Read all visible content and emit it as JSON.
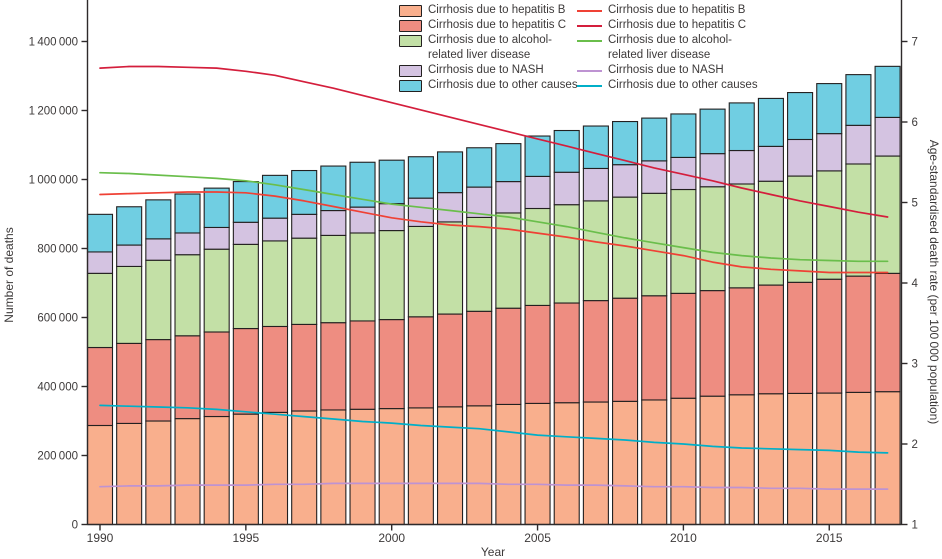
{
  "axes": {
    "left": {
      "title": "Number of deaths",
      "tick_values": [
        0,
        200000,
        400000,
        600000,
        800000,
        1000000,
        1200000,
        1400000
      ],
      "tick_labels": [
        "0",
        "200 000",
        "400 000",
        "600 000",
        "800 000",
        "1 000 000",
        "1 200 000",
        "1 400 000"
      ],
      "range": [
        0,
        1400000
      ]
    },
    "right": {
      "title": "Age-standardised death rate (per 100 000 population)",
      "tick_values": [
        1,
        2,
        3,
        4,
        5,
        6,
        7
      ],
      "tick_labels": [
        "1",
        "2",
        "3",
        "4",
        "5",
        "6",
        "7"
      ],
      "range": [
        1,
        7
      ]
    },
    "x": {
      "title": "Year",
      "tick_values": [
        1990,
        1995,
        2000,
        2005,
        2010,
        2015
      ],
      "tick_labels": [
        "1990",
        "1995",
        "2000",
        "2005",
        "2010",
        "2015"
      ],
      "range": [
        1990,
        2017
      ]
    }
  },
  "chart_data": [
    {
      "type": "bar",
      "stacked": true,
      "legend_position": "top-center-left-column",
      "x": [
        1990,
        1991,
        1992,
        1993,
        1994,
        1995,
        1996,
        1997,
        1998,
        1999,
        2000,
        2001,
        2002,
        2003,
        2004,
        2005,
        2006,
        2007,
        2008,
        2009,
        2010,
        2011,
        2012,
        2013,
        2014,
        2015,
        2016,
        2017
      ],
      "ylabel": "Number of deaths",
      "ylim": [
        0,
        1400000
      ],
      "ytick_step": 200000,
      "series": [
        {
          "name": "Cirrhosis due to hepatitis B",
          "color": "#F9AF8D",
          "values": [
            287000,
            293000,
            300000,
            307000,
            313000,
            320000,
            325000,
            329000,
            332000,
            334000,
            336000,
            338000,
            341000,
            344000,
            348000,
            351000,
            353000,
            355000,
            357000,
            361000,
            366000,
            372000,
            376000,
            379000,
            380000,
            381000,
            383000,
            385000
          ]
        },
        {
          "name": "Cirrhosis due to hepatitis C",
          "color": "#EE8D81",
          "values": [
            226000,
            232000,
            236000,
            240000,
            245000,
            248000,
            249000,
            251000,
            253000,
            256000,
            258000,
            264000,
            269000,
            274000,
            279000,
            284000,
            289000,
            294000,
            299000,
            302000,
            304000,
            306000,
            310000,
            315000,
            322000,
            330000,
            337000,
            343000
          ]
        },
        {
          "name": "Cirrhosis due to alcohol-related liver disease",
          "color": "#C3E0A6",
          "values": [
            215000,
            223000,
            230000,
            235000,
            240000,
            244000,
            248000,
            250000,
            253000,
            255000,
            258000,
            262000,
            267000,
            272000,
            276000,
            281000,
            285000,
            289000,
            293000,
            297000,
            301000,
            301000,
            301000,
            301000,
            308000,
            314000,
            325000,
            340000
          ]
        },
        {
          "name": "Cirrhosis due to NASH",
          "color": "#D4C3E1",
          "values": [
            62000,
            62000,
            62000,
            63000,
            63000,
            64000,
            66000,
            69000,
            72000,
            75000,
            78000,
            82000,
            85000,
            88000,
            91000,
            93000,
            94000,
            94000,
            94000,
            94000,
            93000,
            96000,
            97000,
            101000,
            106000,
            108000,
            112000,
            112000
          ]
        },
        {
          "name": "Cirrhosis due to other causes",
          "color": "#70CEE2",
          "values": [
            109000,
            111000,
            113000,
            113000,
            114000,
            118000,
            124000,
            127000,
            129000,
            130000,
            126000,
            120000,
            118000,
            114000,
            110000,
            117000,
            121000,
            123000,
            125000,
            124000,
            126000,
            129000,
            138000,
            139000,
            136000,
            145000,
            147000,
            148000
          ]
        }
      ]
    },
    {
      "type": "line",
      "legend_position": "top-center-right-column",
      "x": [
        1990,
        1991,
        1992,
        1993,
        1994,
        1995,
        1996,
        1997,
        1998,
        1999,
        2000,
        2001,
        2002,
        2003,
        2004,
        2005,
        2006,
        2007,
        2008,
        2009,
        2010,
        2011,
        2012,
        2013,
        2014,
        2015,
        2016,
        2017
      ],
      "ylabel": "Age-standardised death rate (per 100 000 population)",
      "ylim": [
        1,
        7
      ],
      "series": [
        {
          "name": "Cirrhosis due to hepatitis B",
          "color": "#EF4135",
          "values": [
            5.1,
            5.11,
            5.12,
            5.13,
            5.13,
            5.12,
            5.08,
            5.02,
            4.95,
            4.88,
            4.81,
            4.76,
            4.72,
            4.7,
            4.67,
            4.62,
            4.57,
            4.51,
            4.46,
            4.4,
            4.34,
            4.26,
            4.2,
            4.17,
            4.15,
            4.13,
            4.13,
            4.13
          ]
        },
        {
          "name": "Cirrhosis due to hepatitis C",
          "color": "#D41E3C",
          "values": [
            6.67,
            6.69,
            6.69,
            6.68,
            6.67,
            6.63,
            6.58,
            6.5,
            6.42,
            6.33,
            6.24,
            6.15,
            6.06,
            5.97,
            5.88,
            5.79,
            5.7,
            5.61,
            5.52,
            5.43,
            5.35,
            5.27,
            5.18,
            5.1,
            5.02,
            4.95,
            4.88,
            4.82
          ]
        },
        {
          "name": "Cirrhosis due to alcohol-related liver disease",
          "color": "#6ABE4B",
          "values": [
            5.37,
            5.36,
            5.34,
            5.32,
            5.3,
            5.27,
            5.22,
            5.16,
            5.1,
            5.04,
            4.98,
            4.94,
            4.9,
            4.86,
            4.82,
            4.76,
            4.7,
            4.63,
            4.56,
            4.5,
            4.44,
            4.38,
            4.34,
            4.31,
            4.29,
            4.28,
            4.27,
            4.27
          ]
        },
        {
          "name": "Cirrhosis due to NASH",
          "color": "#BE93D2",
          "values": [
            1.47,
            1.48,
            1.48,
            1.49,
            1.49,
            1.49,
            1.5,
            1.5,
            1.51,
            1.51,
            1.51,
            1.51,
            1.51,
            1.51,
            1.5,
            1.5,
            1.49,
            1.49,
            1.48,
            1.47,
            1.47,
            1.46,
            1.46,
            1.45,
            1.45,
            1.44,
            1.44,
            1.44
          ]
        },
        {
          "name": "Cirrhosis due to other causes",
          "color": "#00AFC8",
          "values": [
            2.48,
            2.47,
            2.46,
            2.45,
            2.43,
            2.4,
            2.37,
            2.34,
            2.31,
            2.28,
            2.26,
            2.23,
            2.21,
            2.19,
            2.15,
            2.11,
            2.09,
            2.07,
            2.05,
            2.02,
            2.0,
            1.97,
            1.95,
            1.94,
            1.93,
            1.92,
            1.9,
            1.89
          ]
        }
      ]
    }
  ]
}
